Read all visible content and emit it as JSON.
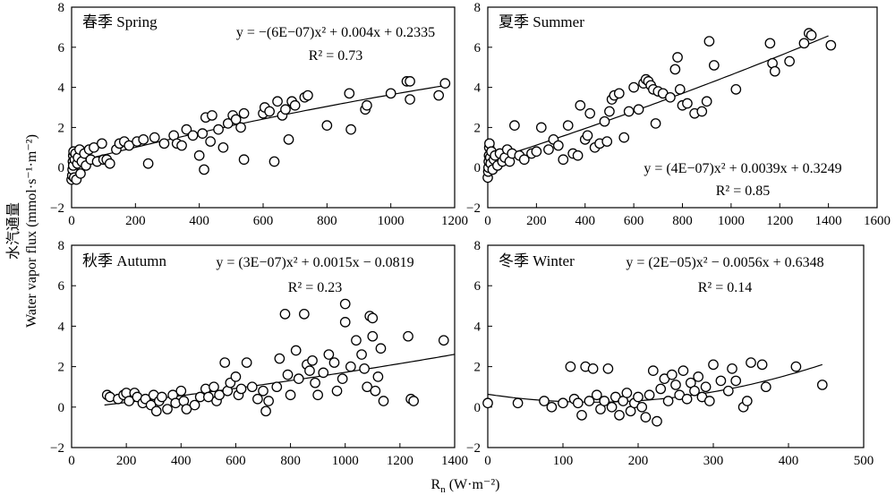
{
  "figure": {
    "ylabel_zh": "水汽通量",
    "ylabel_en": "Water vapor flux (mmol·s⁻¹·m⁻²)",
    "xlabel_main": "R",
    "xlabel_sub": "n",
    "xlabel_unit": " (W·m⁻²)"
  },
  "chart_data": [
    {
      "type": "scatter",
      "title": "春季 Spring",
      "equation": "y = −(6E−07)x² + 0.004x + 0.2335",
      "r2": "R² = 0.73",
      "xlim": [
        0,
        1200
      ],
      "ylim": [
        -2,
        8
      ],
      "xticks": [
        0,
        200,
        400,
        600,
        800,
        1000,
        1200
      ],
      "yticks": [
        -2,
        0,
        2,
        4,
        6,
        8
      ],
      "fit": {
        "a": -6e-07,
        "b": 0.004,
        "c": 0.2335,
        "x_range": [
          0,
          1170
        ]
      },
      "points": [
        [
          0,
          -0.6
        ],
        [
          2,
          -0.4
        ],
        [
          3,
          -0.1
        ],
        [
          4,
          0.3
        ],
        [
          5,
          0.6
        ],
        [
          6,
          0.8
        ],
        [
          5,
          0.1
        ],
        [
          8,
          -0.5
        ],
        [
          10,
          0.4
        ],
        [
          12,
          0.7
        ],
        [
          15,
          -0.6
        ],
        [
          18,
          0.2
        ],
        [
          20,
          0.5
        ],
        [
          25,
          0.9
        ],
        [
          28,
          -0.3
        ],
        [
          32,
          0.3
        ],
        [
          40,
          0.7
        ],
        [
          45,
          0.1
        ],
        [
          55,
          0.9
        ],
        [
          60,
          0.4
        ],
        [
          70,
          1.0
        ],
        [
          80,
          0.3
        ],
        [
          95,
          1.2
        ],
        [
          100,
          0.4
        ],
        [
          110,
          0.4
        ],
        [
          120,
          0.2
        ],
        [
          140,
          0.9
        ],
        [
          150,
          1.2
        ],
        [
          165,
          1.3
        ],
        [
          180,
          1.1
        ],
        [
          205,
          1.3
        ],
        [
          225,
          1.4
        ],
        [
          240,
          0.2
        ],
        [
          260,
          1.5
        ],
        [
          290,
          1.2
        ],
        [
          320,
          1.6
        ],
        [
          330,
          1.2
        ],
        [
          345,
          1.1
        ],
        [
          360,
          1.9
        ],
        [
          380,
          1.6
        ],
        [
          400,
          0.6
        ],
        [
          410,
          1.7
        ],
        [
          415,
          -0.1
        ],
        [
          420,
          2.5
        ],
        [
          435,
          1.3
        ],
        [
          440,
          2.6
        ],
        [
          460,
          1.9
        ],
        [
          475,
          1.0
        ],
        [
          490,
          2.2
        ],
        [
          505,
          2.6
        ],
        [
          515,
          2.4
        ],
        [
          530,
          2.0
        ],
        [
          540,
          2.7
        ],
        [
          540,
          0.4
        ],
        [
          600,
          2.7
        ],
        [
          605,
          3.0
        ],
        [
          620,
          2.8
        ],
        [
          635,
          0.3
        ],
        [
          645,
          3.3
        ],
        [
          660,
          2.6
        ],
        [
          670,
          2.9
        ],
        [
          680,
          1.4
        ],
        [
          690,
          3.3
        ],
        [
          700,
          3.1
        ],
        [
          730,
          3.5
        ],
        [
          740,
          3.6
        ],
        [
          800,
          2.1
        ],
        [
          870,
          3.7
        ],
        [
          875,
          1.9
        ],
        [
          920,
          2.9
        ],
        [
          925,
          3.1
        ],
        [
          1000,
          3.7
        ],
        [
          1050,
          4.3
        ],
        [
          1060,
          4.3
        ],
        [
          1060,
          3.4
        ],
        [
          1150,
          3.6
        ],
        [
          1170,
          4.2
        ]
      ]
    },
    {
      "type": "scatter",
      "title": "夏季 Summer",
      "equation": "y = (4E−07)x² + 0.0039x + 0.3249",
      "r2": "R² = 0.85",
      "xlim": [
        0,
        1600
      ],
      "ylim": [
        -2,
        8
      ],
      "xticks": [
        0,
        200,
        400,
        600,
        800,
        1000,
        1200,
        1400,
        1600
      ],
      "yticks": [
        -2,
        0,
        2,
        4,
        6,
        8
      ],
      "fit": {
        "a": 4e-07,
        "b": 0.0039,
        "c": 0.3249,
        "x_range": [
          0,
          1400
        ]
      },
      "points": [
        [
          0,
          -0.5
        ],
        [
          2,
          -0.2
        ],
        [
          3,
          0.0
        ],
        [
          4,
          0.3
        ],
        [
          5,
          0.6
        ],
        [
          6,
          1.0
        ],
        [
          7,
          1.2
        ],
        [
          10,
          0.5
        ],
        [
          12,
          0.2
        ],
        [
          15,
          0.8
        ],
        [
          20,
          -0.1
        ],
        [
          25,
          0.4
        ],
        [
          30,
          0.6
        ],
        [
          40,
          0.1
        ],
        [
          50,
          0.7
        ],
        [
          60,
          0.3
        ],
        [
          70,
          0.5
        ],
        [
          80,
          0.9
        ],
        [
          90,
          0.3
        ],
        [
          100,
          0.7
        ],
        [
          110,
          2.1
        ],
        [
          130,
          0.6
        ],
        [
          150,
          0.4
        ],
        [
          180,
          0.7
        ],
        [
          200,
          0.8
        ],
        [
          220,
          2.0
        ],
        [
          250,
          0.9
        ],
        [
          270,
          1.4
        ],
        [
          290,
          1.1
        ],
        [
          310,
          0.4
        ],
        [
          330,
          2.1
        ],
        [
          350,
          0.7
        ],
        [
          370,
          0.6
        ],
        [
          380,
          3.1
        ],
        [
          400,
          1.4
        ],
        [
          410,
          1.6
        ],
        [
          420,
          2.7
        ],
        [
          440,
          1.0
        ],
        [
          460,
          1.2
        ],
        [
          480,
          2.3
        ],
        [
          490,
          1.3
        ],
        [
          500,
          2.8
        ],
        [
          510,
          3.4
        ],
        [
          520,
          3.6
        ],
        [
          540,
          3.7
        ],
        [
          560,
          1.5
        ],
        [
          580,
          2.8
        ],
        [
          600,
          4.0
        ],
        [
          620,
          2.9
        ],
        [
          640,
          4.2
        ],
        [
          650,
          4.4
        ],
        [
          660,
          4.3
        ],
        [
          670,
          4.1
        ],
        [
          680,
          3.9
        ],
        [
          690,
          2.2
        ],
        [
          700,
          3.8
        ],
        [
          720,
          3.7
        ],
        [
          750,
          3.5
        ],
        [
          770,
          4.9
        ],
        [
          780,
          5.5
        ],
        [
          790,
          3.9
        ],
        [
          800,
          3.1
        ],
        [
          820,
          3.2
        ],
        [
          850,
          2.7
        ],
        [
          880,
          2.8
        ],
        [
          900,
          3.3
        ],
        [
          910,
          6.3
        ],
        [
          930,
          5.1
        ],
        [
          1020,
          3.9
        ],
        [
          1160,
          6.2
        ],
        [
          1170,
          5.2
        ],
        [
          1180,
          4.8
        ],
        [
          1240,
          5.3
        ],
        [
          1300,
          6.2
        ],
        [
          1320,
          6.7
        ],
        [
          1330,
          6.6
        ],
        [
          1410,
          6.1
        ]
      ]
    },
    {
      "type": "scatter",
      "title": "秋季 Autumn",
      "equation": "y = (3E−07)x² + 0.0015x − 0.0819",
      "r2": "R² = 0.23",
      "xlim": [
        0,
        1400
      ],
      "ylim": [
        -2,
        8
      ],
      "xticks": [
        0,
        200,
        400,
        600,
        800,
        1000,
        1200,
        1400
      ],
      "yticks": [
        -2,
        0,
        2,
        4,
        6,
        8
      ],
      "fit": {
        "a": 3e-07,
        "b": 0.0015,
        "c": -0.0819,
        "x_range": [
          120,
          1400
        ]
      },
      "points": [
        [
          130,
          0.6
        ],
        [
          140,
          0.5
        ],
        [
          170,
          0.4
        ],
        [
          190,
          0.6
        ],
        [
          200,
          0.7
        ],
        [
          210,
          0.3
        ],
        [
          230,
          0.7
        ],
        [
          240,
          0.5
        ],
        [
          260,
          0.2
        ],
        [
          270,
          0.4
        ],
        [
          290,
          0.1
        ],
        [
          300,
          0.6
        ],
        [
          310,
          -0.2
        ],
        [
          320,
          0.3
        ],
        [
          330,
          0.5
        ],
        [
          350,
          -0.1
        ],
        [
          370,
          0.6
        ],
        [
          380,
          0.2
        ],
        [
          400,
          0.8
        ],
        [
          410,
          0.3
        ],
        [
          420,
          -0.1
        ],
        [
          450,
          0.1
        ],
        [
          470,
          0.5
        ],
        [
          490,
          0.9
        ],
        [
          500,
          0.5
        ],
        [
          520,
          1.0
        ],
        [
          530,
          0.3
        ],
        [
          540,
          0.6
        ],
        [
          560,
          2.2
        ],
        [
          570,
          0.8
        ],
        [
          580,
          1.2
        ],
        [
          600,
          1.5
        ],
        [
          610,
          0.6
        ],
        [
          620,
          0.9
        ],
        [
          640,
          2.2
        ],
        [
          660,
          1.0
        ],
        [
          680,
          0.4
        ],
        [
          700,
          0.8
        ],
        [
          710,
          -0.2
        ],
        [
          720,
          0.3
        ],
        [
          750,
          1.0
        ],
        [
          760,
          2.4
        ],
        [
          780,
          4.6
        ],
        [
          790,
          1.6
        ],
        [
          800,
          0.6
        ],
        [
          820,
          2.8
        ],
        [
          830,
          1.4
        ],
        [
          850,
          4.6
        ],
        [
          860,
          2.1
        ],
        [
          870,
          1.8
        ],
        [
          880,
          2.3
        ],
        [
          890,
          1.2
        ],
        [
          900,
          0.6
        ],
        [
          920,
          1.7
        ],
        [
          940,
          2.6
        ],
        [
          960,
          2.2
        ],
        [
          970,
          0.8
        ],
        [
          990,
          1.4
        ],
        [
          1000,
          5.1
        ],
        [
          1000,
          4.2
        ],
        [
          1020,
          2.0
        ],
        [
          1040,
          3.3
        ],
        [
          1060,
          2.6
        ],
        [
          1070,
          1.9
        ],
        [
          1080,
          1.0
        ],
        [
          1090,
          4.5
        ],
        [
          1100,
          4.4
        ],
        [
          1100,
          3.5
        ],
        [
          1110,
          0.8
        ],
        [
          1120,
          1.5
        ],
        [
          1130,
          2.9
        ],
        [
          1140,
          0.3
        ],
        [
          1230,
          3.5
        ],
        [
          1240,
          0.4
        ],
        [
          1250,
          0.3
        ],
        [
          1360,
          3.3
        ]
      ]
    },
    {
      "type": "scatter",
      "title": "冬季 Winter",
      "equation": "y = (2E−05)x² − 0.0056x + 0.6348",
      "r2": "R² = 0.14",
      "xlim": [
        0,
        500
      ],
      "ylim": [
        -2,
        8
      ],
      "xticks": [
        0,
        100,
        200,
        300,
        400,
        500
      ],
      "yticks": [
        -2,
        0,
        2,
        4,
        6,
        8
      ],
      "fit": {
        "a": 2e-05,
        "b": -0.0056,
        "c": 0.6348,
        "x_range": [
          0,
          445
        ]
      },
      "points": [
        [
          0,
          0.2
        ],
        [
          40,
          0.2
        ],
        [
          75,
          0.3
        ],
        [
          85,
          0.0
        ],
        [
          100,
          0.2
        ],
        [
          110,
          2.0
        ],
        [
          115,
          0.4
        ],
        [
          120,
          0.2
        ],
        [
          125,
          -0.4
        ],
        [
          130,
          2.0
        ],
        [
          135,
          0.3
        ],
        [
          140,
          1.9
        ],
        [
          145,
          0.6
        ],
        [
          150,
          -0.1
        ],
        [
          155,
          0.3
        ],
        [
          160,
          1.9
        ],
        [
          165,
          0.0
        ],
        [
          170,
          0.5
        ],
        [
          175,
          -0.4
        ],
        [
          180,
          0.3
        ],
        [
          185,
          0.7
        ],
        [
          190,
          -0.2
        ],
        [
          195,
          0.2
        ],
        [
          200,
          0.5
        ],
        [
          205,
          0.0
        ],
        [
          210,
          -0.5
        ],
        [
          215,
          0.6
        ],
        [
          220,
          1.8
        ],
        [
          225,
          -0.7
        ],
        [
          230,
          0.9
        ],
        [
          235,
          1.4
        ],
        [
          240,
          0.3
        ],
        [
          245,
          1.6
        ],
        [
          250,
          1.1
        ],
        [
          255,
          0.6
        ],
        [
          260,
          1.8
        ],
        [
          265,
          0.4
        ],
        [
          270,
          1.2
        ],
        [
          275,
          0.8
        ],
        [
          280,
          1.5
        ],
        [
          285,
          0.5
        ],
        [
          290,
          1.0
        ],
        [
          295,
          0.3
        ],
        [
          300,
          2.1
        ],
        [
          310,
          1.3
        ],
        [
          320,
          0.8
        ],
        [
          325,
          1.9
        ],
        [
          330,
          1.3
        ],
        [
          340,
          0.0
        ],
        [
          345,
          0.3
        ],
        [
          350,
          2.2
        ],
        [
          365,
          2.1
        ],
        [
          370,
          1.0
        ],
        [
          410,
          2.0
        ],
        [
          445,
          1.1
        ]
      ]
    }
  ]
}
